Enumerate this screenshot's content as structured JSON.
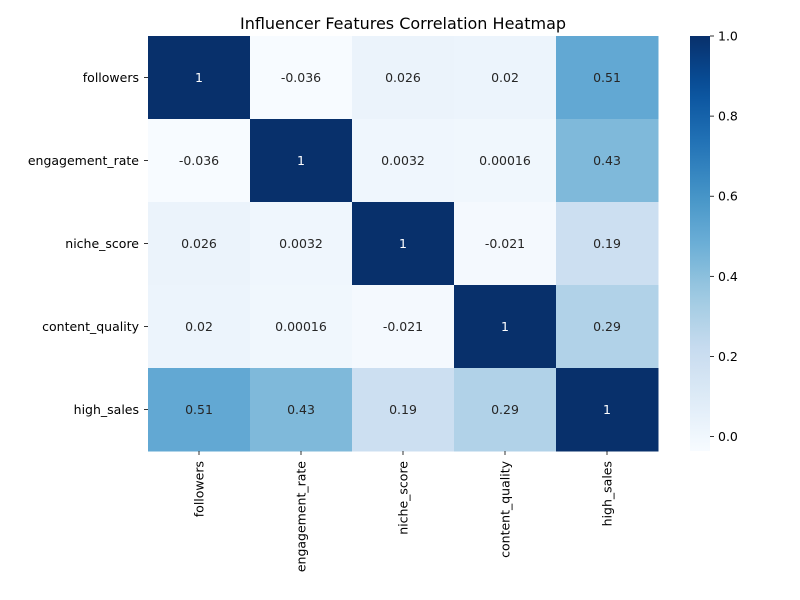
{
  "chart_data": {
    "type": "heatmap",
    "title": "Influencer Features Correlation Heatmap",
    "rows": [
      "followers",
      "engagement_rate",
      "niche_score",
      "content_quality",
      "high_sales"
    ],
    "columns": [
      "followers",
      "engagement_rate",
      "niche_score",
      "content_quality",
      "high_sales"
    ],
    "values": [
      [
        1,
        -0.036,
        0.026,
        0.02,
        0.51
      ],
      [
        -0.036,
        1,
        0.0032,
        0.00016,
        0.43
      ],
      [
        0.026,
        0.0032,
        1,
        -0.021,
        0.19
      ],
      [
        0.02,
        0.00016,
        -0.021,
        1,
        0.29
      ],
      [
        0.51,
        0.43,
        0.19,
        0.29,
        1
      ]
    ],
    "cell_labels": [
      [
        "1",
        "-0.036",
        "0.026",
        "0.02",
        "0.51"
      ],
      [
        "-0.036",
        "1",
        "0.0032",
        "0.00016",
        "0.43"
      ],
      [
        "0.026",
        "0.0032",
        "1",
        "-0.021",
        "0.19"
      ],
      [
        "0.02",
        "0.00016",
        "-0.021",
        "1",
        "0.29"
      ],
      [
        "0.51",
        "0.43",
        "0.19",
        "0.29",
        "1"
      ]
    ],
    "colormap": "Blues",
    "vmin": -0.036,
    "vmax": 1,
    "colorbar": {
      "ticks": [
        0.0,
        0.2,
        0.4,
        0.6,
        0.8,
        1.0
      ],
      "tick_labels": [
        "0.0",
        "0.2",
        "0.4",
        "0.6",
        "0.8",
        "1.0"
      ]
    }
  }
}
